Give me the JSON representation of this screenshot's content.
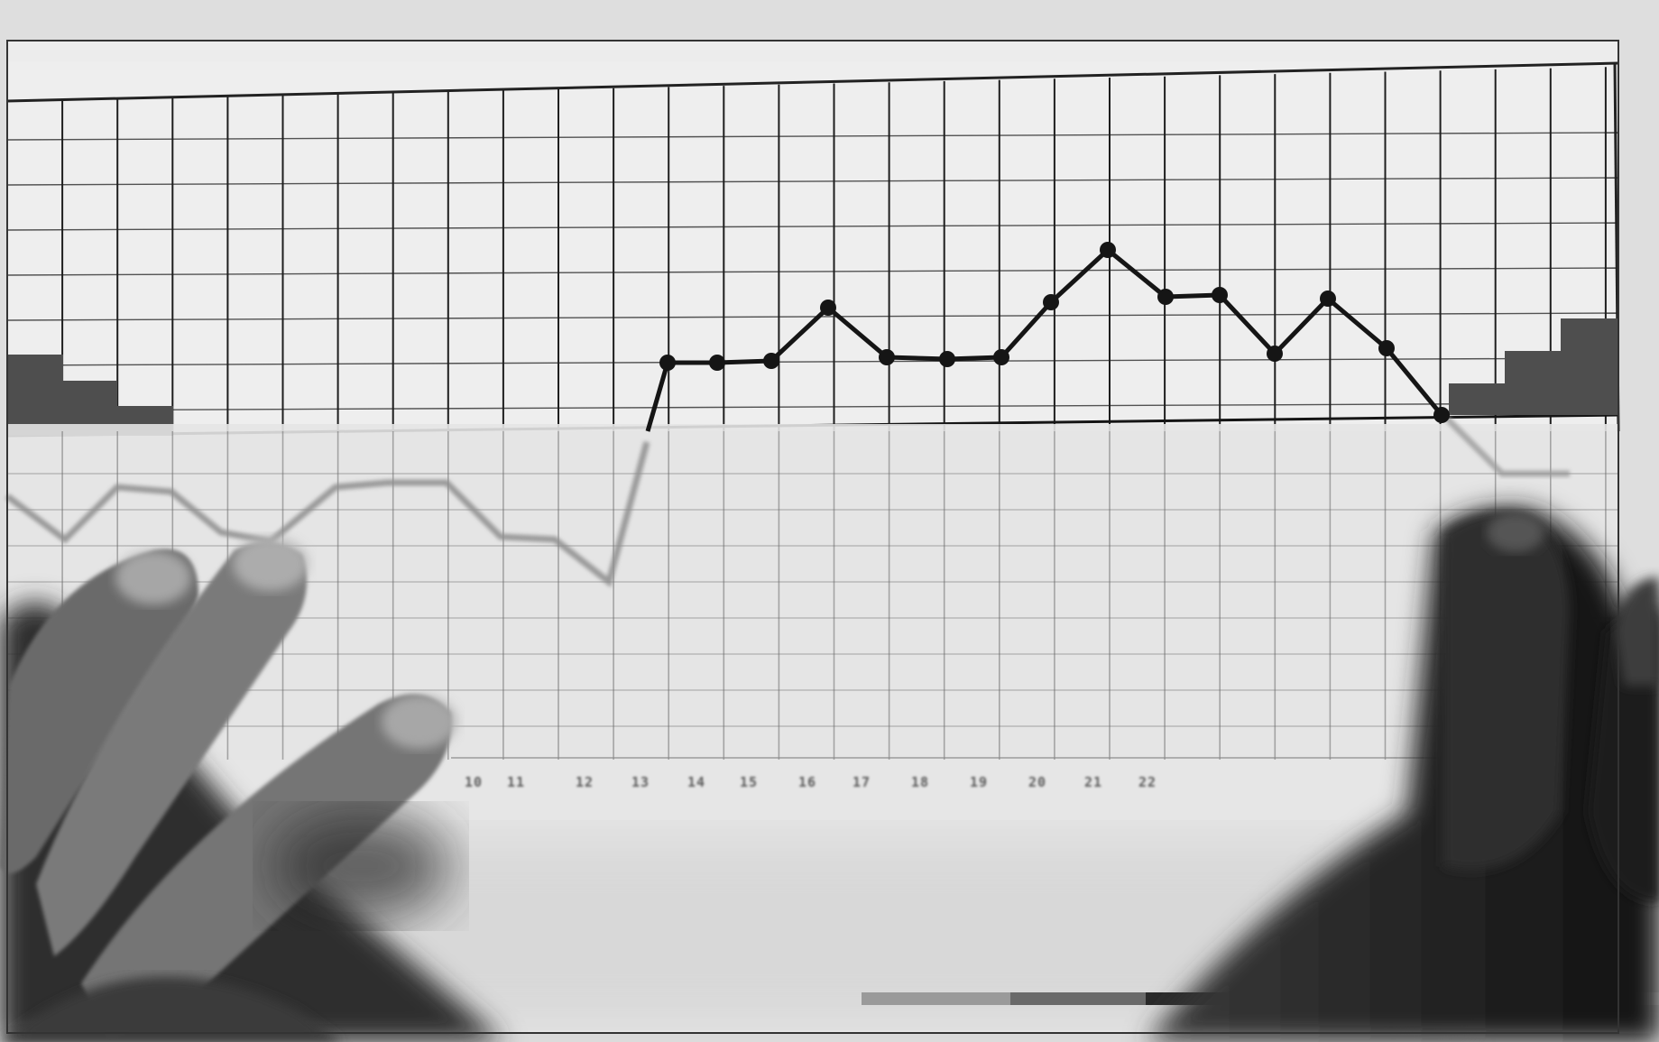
{
  "photo": {
    "tick_labels": [
      "10",
      "11",
      "12",
      "13",
      "14",
      "15",
      "16",
      "17",
      "18",
      "19",
      "20",
      "21",
      "22"
    ]
  },
  "colors": {
    "paper": "#eeeeee",
    "grid_line": "#1e1e1e",
    "overlay_sheet": "#e2e2e2",
    "trace": "#151515",
    "block_shading": "#505050",
    "skin_shadow": "#2c2c2c"
  }
}
